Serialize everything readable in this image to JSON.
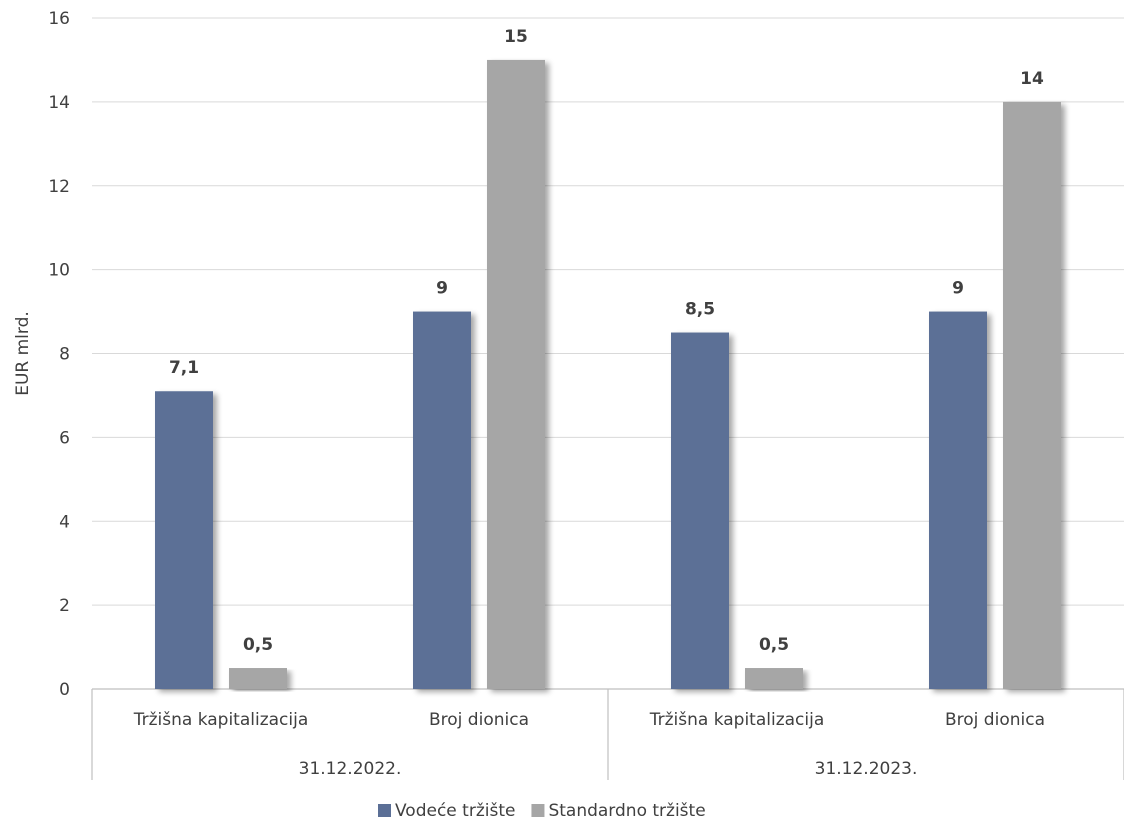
{
  "chart_data": {
    "type": "bar",
    "ylabel": "EUR mlrd.",
    "ylim": [
      0,
      16
    ],
    "yticks": [
      0,
      2,
      4,
      6,
      8,
      10,
      12,
      14,
      16
    ],
    "grid": true,
    "legend_position": "bottom",
    "groups": [
      {
        "label": "31.12.2022.",
        "categories": [
          "Tržišna kapitalizacija",
          "Broj dionica"
        ]
      },
      {
        "label": "31.12.2023.",
        "categories": [
          "Tržišna kapitalizacija",
          "Broj dionica"
        ]
      }
    ],
    "series": [
      {
        "name": "Vodeće tržište",
        "color": "#5b6f96",
        "values": [
          7.1,
          9,
          8.5,
          9
        ],
        "labels": [
          "7,1",
          "9",
          "8,5",
          "9"
        ]
      },
      {
        "name": "Standardno tržište",
        "color": "#a6a6a6",
        "values": [
          0.5,
          15,
          0.5,
          14
        ],
        "labels": [
          "0,5",
          "15",
          "0,5",
          "14"
        ]
      }
    ]
  }
}
